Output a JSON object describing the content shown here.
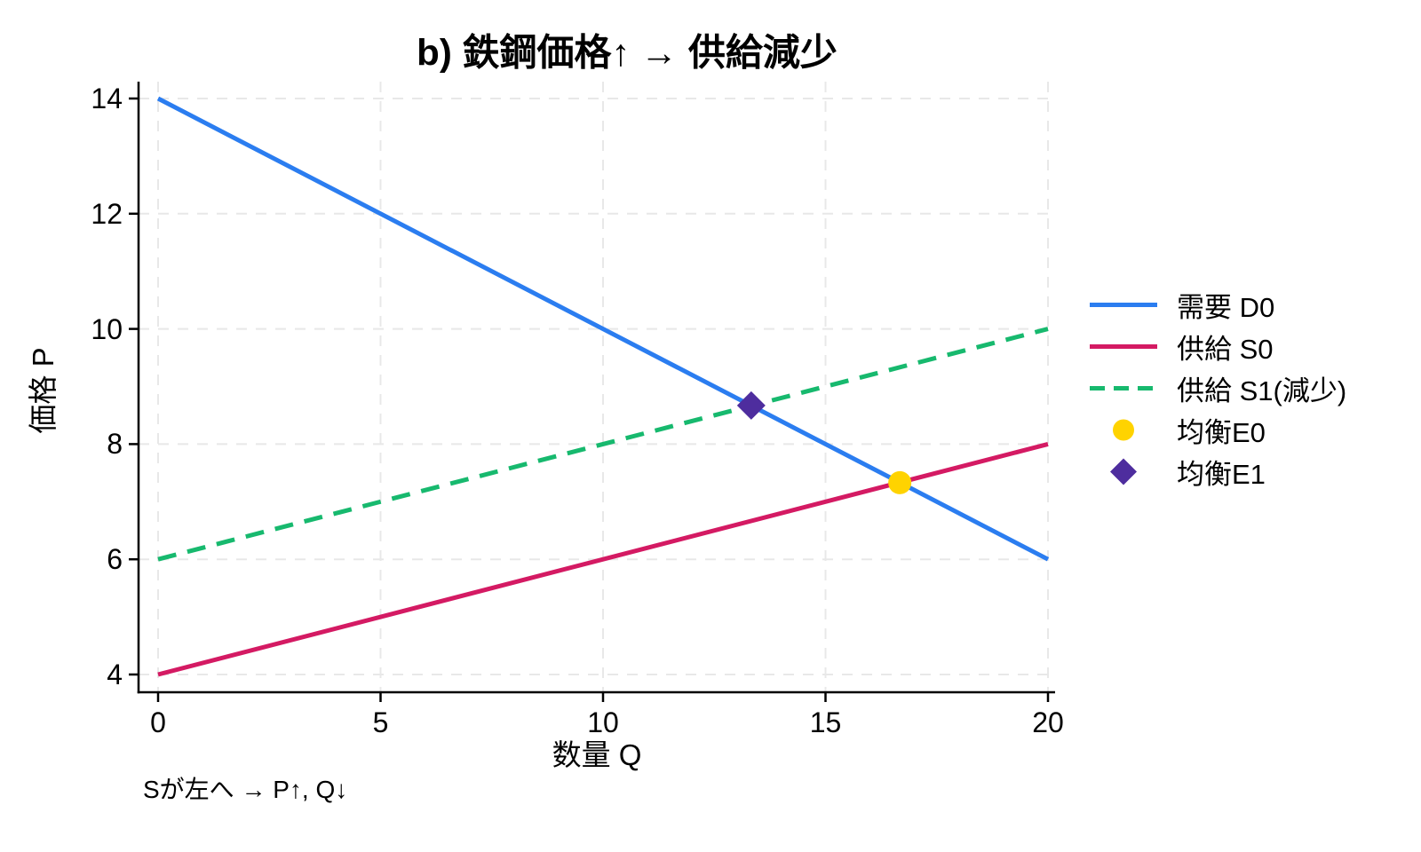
{
  "chart_data": {
    "type": "line",
    "title": "b) 鉄鋼価格↑ → 供給減少",
    "xlabel": "数量 Q",
    "ylabel": "価格 P",
    "annotation": "Sが左へ → P↑, Q↓",
    "xlim": [
      0,
      20
    ],
    "ylim": [
      4,
      14
    ],
    "xticks": [
      0,
      5,
      10,
      15,
      20
    ],
    "yticks": [
      4,
      6,
      8,
      10,
      12,
      14
    ],
    "grid": true,
    "grid_style": "dashed",
    "legend_position": "right-outside",
    "series": [
      {
        "name": "需要 D0",
        "type": "line",
        "style": "solid",
        "color": "#2B7DF0",
        "x": [
          0,
          20
        ],
        "y": [
          14,
          6
        ]
      },
      {
        "name": "供給 S0",
        "type": "line",
        "style": "solid",
        "color": "#D41A63",
        "x": [
          0,
          20
        ],
        "y": [
          4,
          8
        ]
      },
      {
        "name": "供給 S1(減少)",
        "type": "line",
        "style": "dashed",
        "color": "#17B96E",
        "x": [
          0,
          20
        ],
        "y": [
          6,
          10
        ]
      },
      {
        "name": "均衡E0",
        "type": "marker",
        "marker": "circle",
        "color": "#FFD300",
        "x": [
          16.67
        ],
        "y": [
          7.33
        ]
      },
      {
        "name": "均衡E1",
        "type": "marker",
        "marker": "diamond",
        "color": "#4E2D9E",
        "x": [
          13.33
        ],
        "y": [
          8.67
        ]
      }
    ],
    "colors": {
      "demand": "#2B7DF0",
      "supply0": "#D41A63",
      "supply1": "#17B96E",
      "equilibrium0": "#FFD300",
      "equilibrium1": "#4E2D9E",
      "grid": "#e8e8e8",
      "axis": "#000000",
      "text": "#000000"
    }
  }
}
